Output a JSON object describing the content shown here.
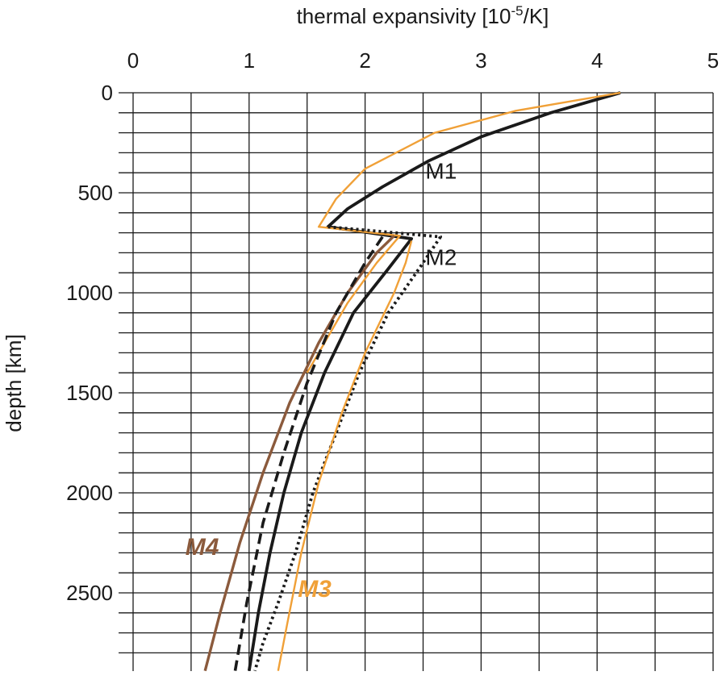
{
  "chart_data": {
    "type": "line",
    "title": "",
    "xlabel_prefix": "thermal expansivity [10",
    "xlabel_sup": "-5",
    "xlabel_suffix": "/K]",
    "ylabel": "depth [km]",
    "xlim": [
      0,
      5
    ],
    "ylim": [
      0,
      2890
    ],
    "y_inverted": true,
    "x_axis_position": "top",
    "grid": true,
    "x_ticks": [
      0,
      1,
      2,
      3,
      4,
      5
    ],
    "x_tick_labels": [
      "0",
      "1",
      "2",
      "3",
      "4",
      "5"
    ],
    "x_grid_step": 0.5,
    "y_ticks": [
      0,
      500,
      1000,
      1500,
      2000,
      2500
    ],
    "y_tick_labels": [
      "0",
      "500",
      "1000",
      "1500",
      "2000",
      "2500"
    ],
    "y_grid_step": 100,
    "series": [
      {
        "name": "M1",
        "label": "M1",
        "color": "#1a1a1a",
        "style": "solid",
        "width": 3.8,
        "x": [
          4.2,
          3.6,
          3.0,
          2.55,
          2.15,
          1.85,
          1.68,
          2.4,
          2.2,
          1.9,
          1.65,
          1.45,
          1.3,
          1.18,
          1.08,
          1.0
        ],
        "depth": [
          0,
          100,
          220,
          340,
          470,
          580,
          670,
          730,
          880,
          1100,
          1400,
          1700,
          2000,
          2300,
          2600,
          2890
        ]
      },
      {
        "name": "M1 (thin)",
        "label": "",
        "color": "#f0a037",
        "style": "solid",
        "width": 2.4,
        "x": [
          4.2,
          3.3,
          2.6,
          2.0,
          1.75,
          1.6,
          2.3,
          2.1,
          1.85,
          1.65,
          1.5
        ],
        "depth": [
          0,
          90,
          200,
          380,
          530,
          670,
          715,
          850,
          1050,
          1250,
          1400
        ]
      },
      {
        "name": "M2",
        "label": "M2",
        "color": "#1a1a1a",
        "style": "dotted",
        "width": 3.8,
        "x": [
          1.68,
          2.65,
          2.5,
          2.2,
          1.95,
          1.75,
          1.55,
          1.4,
          1.25,
          1.12,
          1.05
        ],
        "depth": [
          670,
          720,
          850,
          1100,
          1400,
          1700,
          2000,
          2300,
          2550,
          2750,
          2890
        ]
      },
      {
        "name": "M3",
        "label": "M3",
        "color": "#f0a037",
        "style": "solid",
        "width": 2.4,
        "x": [
          2.4,
          2.35,
          2.25,
          2.0,
          1.8,
          1.6,
          1.45,
          1.33,
          1.25
        ],
        "depth": [
          740,
          850,
          1000,
          1300,
          1600,
          1950,
          2300,
          2650,
          2890
        ]
      },
      {
        "name": "M4",
        "label": "M4",
        "color": "#8b5a3c",
        "style": "solid",
        "width": 3.4,
        "x": [
          2.25,
          2.1,
          1.85,
          1.6,
          1.35,
          1.12,
          0.92,
          0.75,
          0.62
        ],
        "depth": [
          715,
          800,
          1000,
          1250,
          1550,
          1900,
          2250,
          2600,
          2890
        ]
      },
      {
        "name": "dashed",
        "label": "",
        "color": "#1a1a1a",
        "style": "dashed",
        "width": 3.6,
        "x": [
          2.15,
          2.0,
          1.75,
          1.5,
          1.3,
          1.12,
          0.98,
          0.88
        ],
        "depth": [
          720,
          850,
          1100,
          1450,
          1800,
          2150,
          2550,
          2890
        ]
      }
    ],
    "annotations": [
      {
        "text": "M1",
        "x": 2.52,
        "depth": 430,
        "color": "#1a1a1a",
        "bold": false
      },
      {
        "text": "M2",
        "x": 2.52,
        "depth": 860,
        "color": "#1a1a1a",
        "bold": false
      },
      {
        "text": "M4",
        "x": 0.45,
        "depth": 2310,
        "color": "#8b5a3c",
        "bold": true
      },
      {
        "text": "M3",
        "x": 1.42,
        "depth": 2520,
        "color": "#f0a037",
        "bold": true
      }
    ]
  }
}
